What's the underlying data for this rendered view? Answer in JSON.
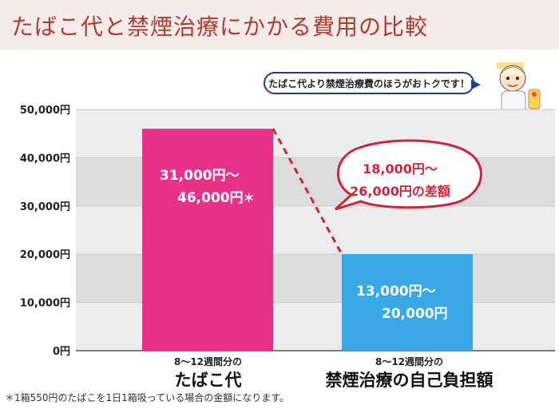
{
  "title": "たばこ代と禁煙治療にかかる費用の比較",
  "speech_bubble": "たばこ代より禁煙治療費のほうがおトクです！",
  "footnote": "＊1箱550円のたばこを1日1箱吸っている場合の金額になります。",
  "colors": {
    "tobacco": "#e8318a",
    "treatment": "#3aa7e6",
    "accent": "#d0243a",
    "title": "#b03a2e"
  },
  "chart_data": {
    "type": "bar",
    "yticks": [
      "50,000円",
      "40,000円",
      "30,000円",
      "20,000円",
      "10,000円",
      "0円"
    ],
    "ylim": [
      0,
      50000
    ],
    "categories": [
      {
        "sub": "8～12週間分の",
        "main": "たばこ代"
      },
      {
        "sub": "8～12週間分の",
        "main": "禁煙治療の自己負担額"
      }
    ],
    "values": [
      46000,
      20000
    ],
    "ranges": [
      [
        31000,
        46000
      ],
      [
        13000,
        20000
      ]
    ],
    "bar_labels": [
      {
        "line1": "31,000円～",
        "line2": "46,000円",
        "mark": "＊"
      },
      {
        "line1": "13,000円～",
        "line2": "20,000円"
      }
    ],
    "difference": {
      "line1": "18,000円～",
      "line2": "26,000円の差額"
    },
    "grid": true
  }
}
